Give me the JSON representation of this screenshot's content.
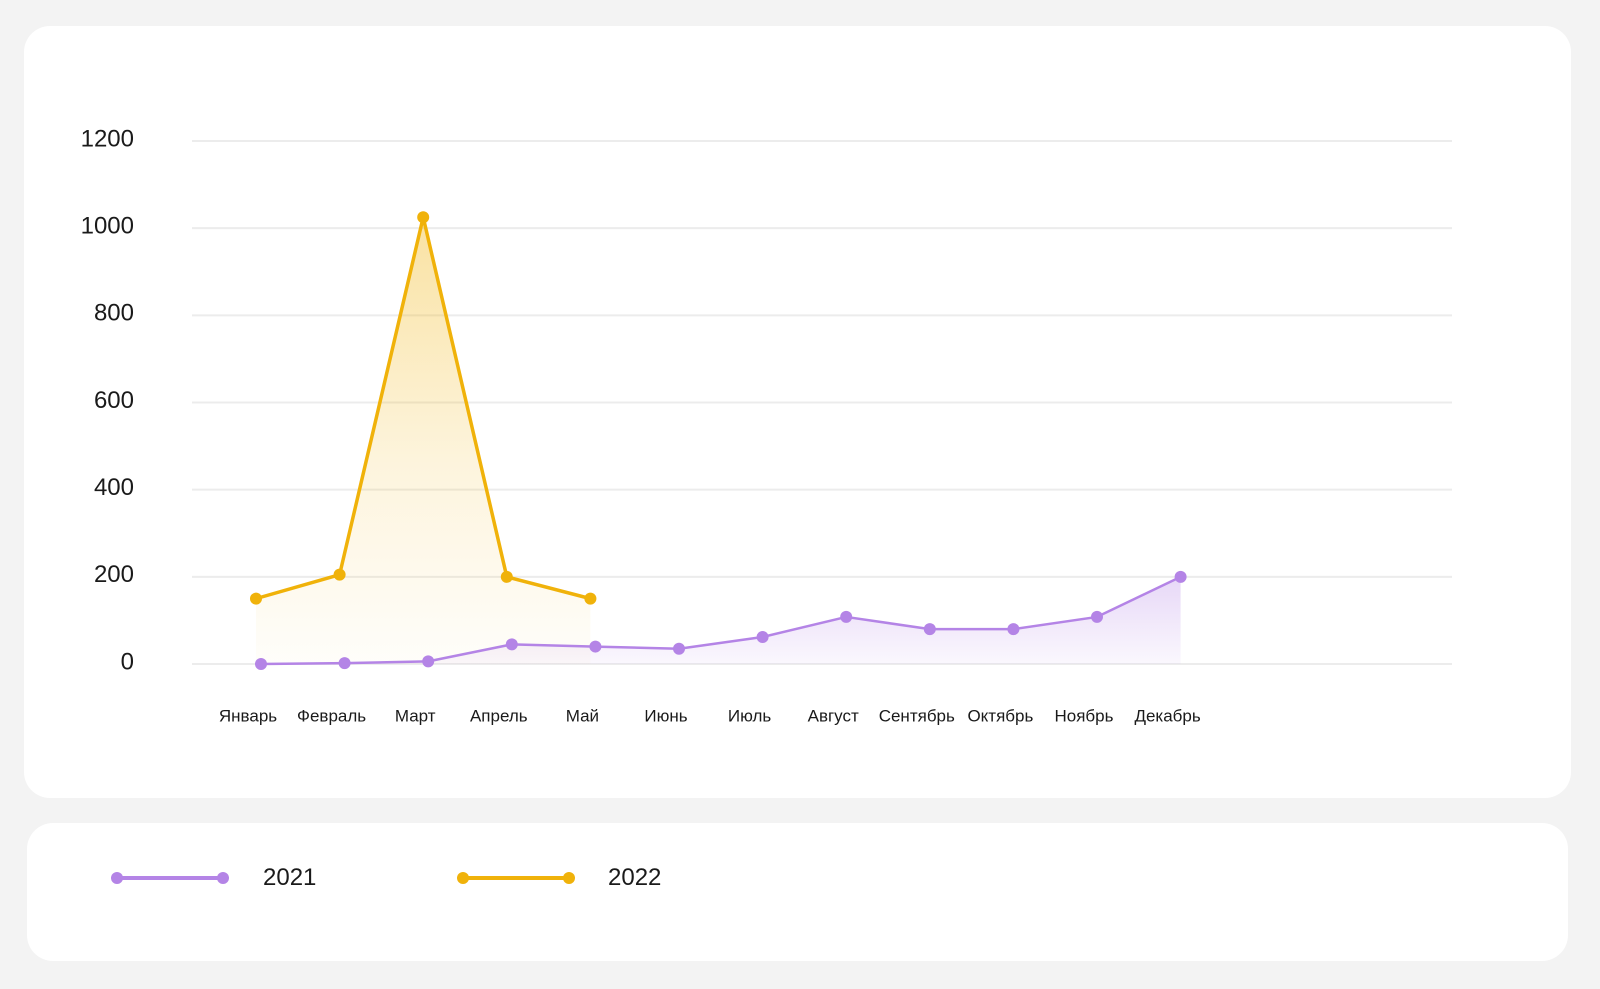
{
  "colors": {
    "background": "#f3f3f3",
    "card": "#ffffff",
    "grid": "#ececec",
    "axis_text": "#1a1a1a",
    "series_2021": "#b484e6",
    "series_2022": "#f0b20a"
  },
  "chart_data": {
    "type": "line",
    "title": "",
    "xlabel": "",
    "ylabel": "",
    "ylim": [
      0,
      1200
    ],
    "yticks": [
      "0",
      "200",
      "400",
      "600",
      "800",
      "1000",
      "1200"
    ],
    "grid": true,
    "categories": [
      "Январь",
      "Февраль",
      "Март",
      "Апрель",
      "Май",
      "Июнь",
      "Июль",
      "Август",
      "Сентябрь",
      "Октябрь",
      "Ноябрь",
      "Декабрь"
    ],
    "series": [
      {
        "name": "2021",
        "color": "#b484e6",
        "values": [
          0,
          2,
          6,
          45,
          40,
          35,
          62,
          108,
          80,
          80,
          108,
          200
        ],
        "area": true
      },
      {
        "name": "2022",
        "color": "#f0b20a",
        "values": [
          150,
          205,
          1025,
          200,
          150,
          null,
          null,
          null,
          null,
          null,
          null,
          null
        ],
        "area": true
      }
    ],
    "legend_position": "bottom"
  },
  "legend": {
    "items": [
      {
        "label": "2021",
        "color": "#b484e6"
      },
      {
        "label": "2022",
        "color": "#f0b20a"
      }
    ]
  }
}
